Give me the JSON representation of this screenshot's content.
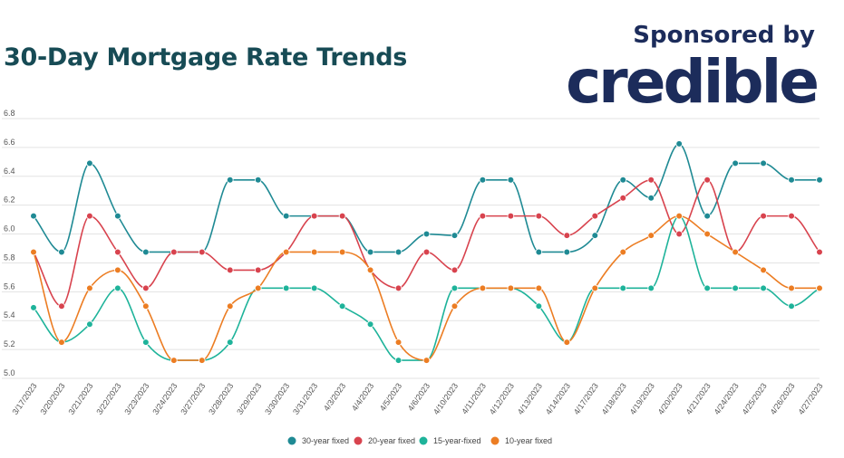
{
  "header": {
    "title": "30-Day Mortgage Rate Trends",
    "sponsor_label": "Sponsored by",
    "brand": "credible"
  },
  "chart_data": {
    "type": "line",
    "ylim": [
      5.0,
      6.8
    ],
    "yticks": [
      "5.0",
      "5.2",
      "5.4",
      "5.6",
      "5.8",
      "6.0",
      "6.2",
      "6.4",
      "6.6",
      "6.8"
    ],
    "grid": true,
    "legend_position": "bottom",
    "x": [
      "3/17/2023",
      "3/20/2023",
      "3/21/2023",
      "3/22/2023",
      "3/23/2023",
      "3/24/2023",
      "3/27/2023",
      "3/28/2023",
      "3/29/2023",
      "3/30/2023",
      "3/31/2023",
      "4/3/2023",
      "4/4/2023",
      "4/5/2023",
      "4/6/2023",
      "4/10/2023",
      "4/11/2023",
      "4/12/2023",
      "4/13/2023",
      "4/14/2023",
      "4/17/2023",
      "4/18/2023",
      "4/19/2023",
      "4/20/2023",
      "4/21/2023",
      "4/24/2023",
      "4/25/2023",
      "4/26/2023",
      "4/27/2023"
    ],
    "series": [
      {
        "name": "30-year fixed",
        "color": "#1f8a94",
        "values": [
          6.125,
          5.875,
          6.49,
          6.125,
          5.875,
          5.875,
          5.875,
          6.375,
          6.375,
          6.125,
          6.125,
          6.125,
          5.875,
          5.875,
          6.0,
          5.99,
          6.375,
          6.375,
          5.875,
          5.875,
          5.99,
          6.375,
          6.25,
          6.625,
          6.125,
          6.49,
          6.49,
          6.375,
          6.375
        ]
      },
      {
        "name": "20-year fixed",
        "color": "#d8434e",
        "values": [
          5.875,
          5.5,
          6.125,
          5.875,
          5.625,
          5.875,
          5.875,
          5.75,
          5.75,
          5.875,
          6.125,
          6.125,
          5.75,
          5.625,
          5.875,
          5.75,
          6.125,
          6.125,
          6.125,
          5.99,
          6.125,
          6.25,
          6.375,
          6.0,
          6.375,
          5.875,
          6.125,
          6.125,
          5.875
        ]
      },
      {
        "name": "15-year-fixed",
        "color": "#1eb39a",
        "values": [
          5.49,
          5.25,
          5.375,
          5.625,
          5.25,
          5.125,
          5.125,
          5.25,
          5.625,
          5.625,
          5.625,
          5.5,
          5.375,
          5.125,
          5.125,
          5.625,
          5.625,
          5.625,
          5.5,
          5.25,
          5.625,
          5.625,
          5.625,
          6.125,
          5.625,
          5.625,
          5.625,
          5.5,
          5.625
        ]
      },
      {
        "name": "10-year fixed",
        "color": "#ec7d23",
        "values": [
          5.875,
          5.25,
          5.625,
          5.75,
          5.5,
          5.125,
          5.125,
          5.5,
          5.625,
          5.875,
          5.875,
          5.875,
          5.75,
          5.25,
          5.125,
          5.5,
          5.625,
          5.625,
          5.625,
          5.25,
          5.625,
          5.875,
          5.99,
          6.125,
          6.0,
          5.875,
          5.75,
          5.625,
          5.625
        ]
      }
    ]
  }
}
